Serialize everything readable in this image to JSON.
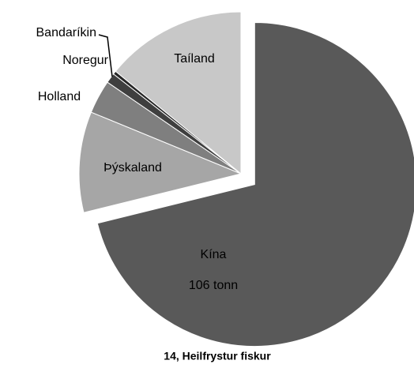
{
  "chart_data": {
    "type": "pie",
    "title": "14, Heilfrystur fiskur",
    "categories": [
      "Kína",
      "Þýskaland",
      "Holland",
      "Noregur",
      "Bandaríkin",
      "Taíland"
    ],
    "values": [
      106,
      15,
      5,
      1.5,
      0.5,
      21
    ],
    "value_labels": [
      "106  tonn",
      null,
      null,
      null,
      null,
      null
    ],
    "colors": [
      "#595959",
      "#a6a6a6",
      "#7f7f7f",
      "#3f3f3f",
      "#262626",
      "#c8c8c8"
    ],
    "exploded": [
      true,
      false,
      false,
      false,
      false,
      false
    ]
  }
}
